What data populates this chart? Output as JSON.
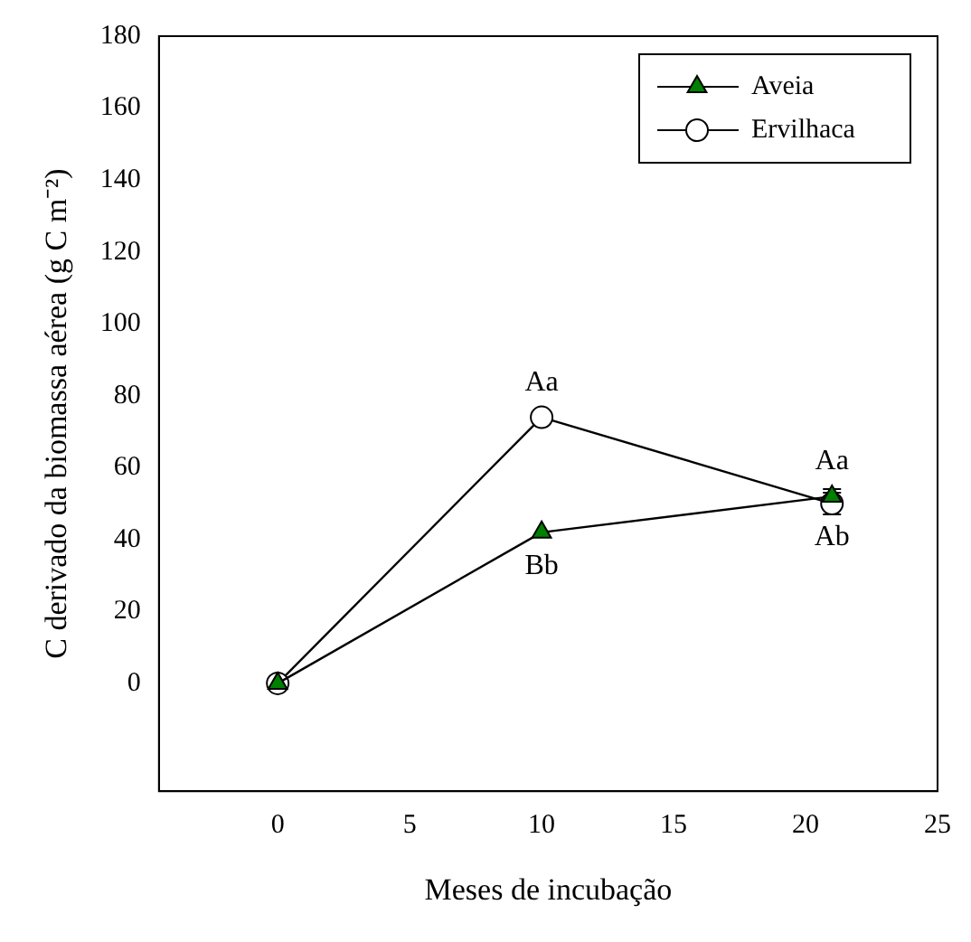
{
  "chart_data": {
    "type": "line",
    "xlabel": "Meses de incubação",
    "ylabel": "C derivado da biomassa aérea (g C m⁻²)",
    "x": [
      0,
      10,
      21
    ],
    "series": [
      {
        "name": "Aveia",
        "color": "#008000",
        "marker": "triangle",
        "values": [
          0,
          42,
          52
        ],
        "errors": [
          null,
          null,
          2
        ],
        "value_labels": [
          null,
          "Bb",
          "Aa"
        ]
      },
      {
        "name": "Ervilhaca",
        "color": "#ffffff",
        "marker": "circle",
        "values": [
          0,
          74,
          50
        ],
        "errors": [
          null,
          null,
          3
        ],
        "value_labels": [
          null,
          "Aa",
          "Ab"
        ]
      }
    ],
    "xlim": [
      -4.5,
      25
    ],
    "xticks": [
      0,
      5,
      10,
      15,
      20,
      25
    ],
    "ylim": [
      -30,
      180
    ],
    "yticks": [
      0,
      20,
      40,
      60,
      80,
      100,
      120,
      140,
      160,
      180
    ],
    "grid": false,
    "legend": "top right",
    "line_style": "solid"
  }
}
